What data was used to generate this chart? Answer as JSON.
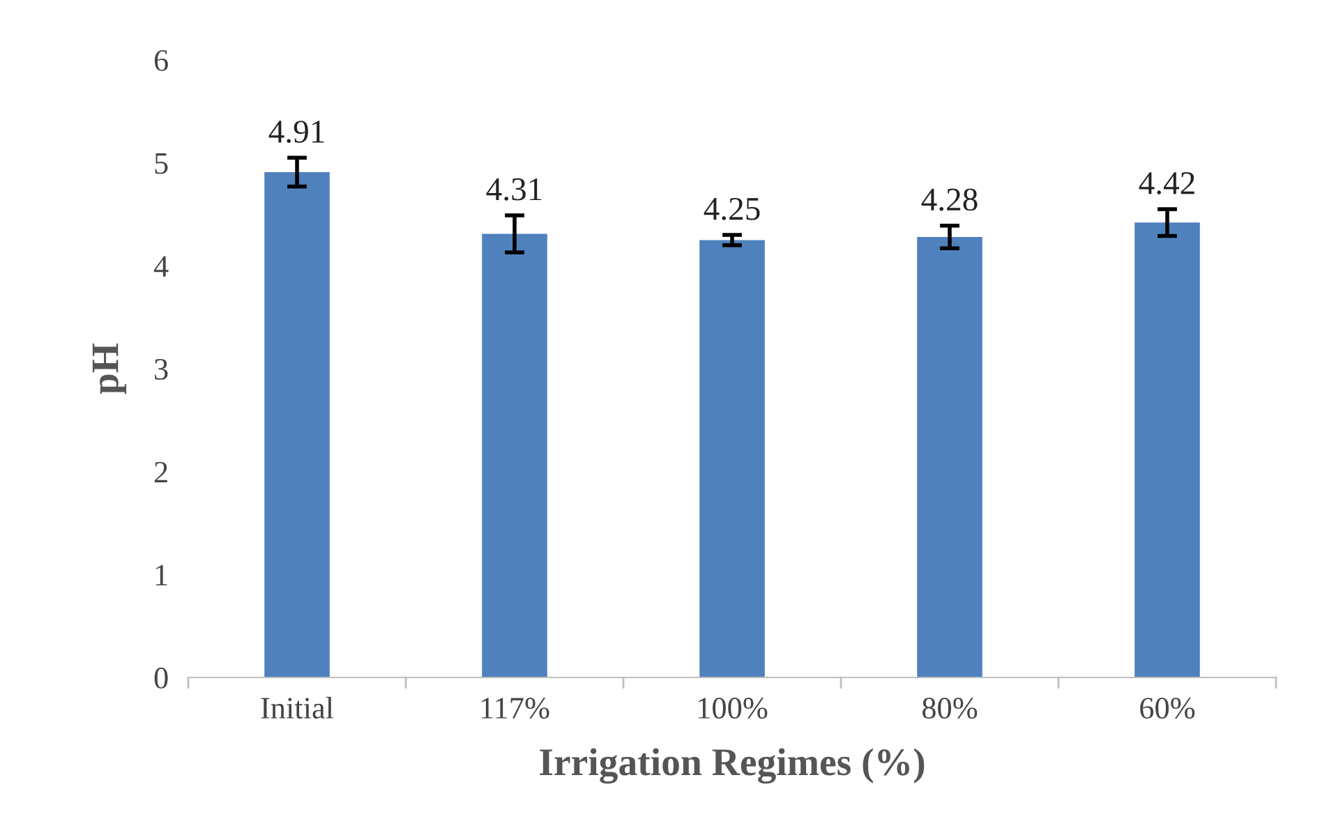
{
  "chart_data": {
    "type": "bar",
    "xlabel": "Irrigation Regimes (%)",
    "ylabel": "pH",
    "categories": [
      "Initial",
      "117%",
      "100%",
      "80%",
      "60%"
    ],
    "values": [
      4.91,
      4.31,
      4.25,
      4.28,
      4.42
    ],
    "errors": [
      0.14,
      0.18,
      0.05,
      0.11,
      0.13
    ],
    "color": "#4f81bd",
    "ylim": [
      0,
      6
    ],
    "yticks": [
      0,
      1,
      2,
      3,
      4,
      5,
      6
    ],
    "grid": false,
    "legend": false,
    "data_labels": true
  }
}
